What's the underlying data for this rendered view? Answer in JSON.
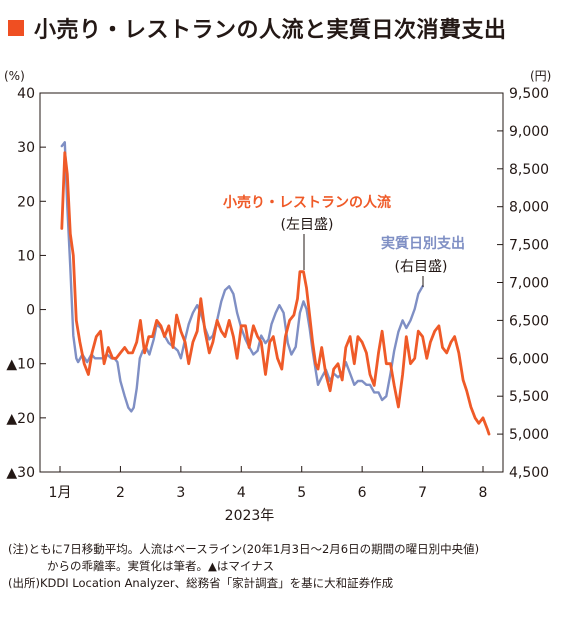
{
  "title": "小売り・レストランの人流と実質日次消費支出",
  "notes": {
    "note1": "(注)ともに7日移動平均。人流はベースライン(20年1月3日〜2月6日の期間の曜日別中央値)",
    "note2": "からの乖離率。実質化は筆者。▲はマイナス",
    "source": "(出所)KDDI Location Analyzer、総務省「家計調査」を基に大和証券作成"
  },
  "colors": {
    "accent": "#ef4f22",
    "people_flow": "#ef5a28",
    "spending": "#7f8fc4",
    "text": "#231815"
  },
  "chart_data": {
    "type": "line",
    "xlabel": "2023年",
    "x_tick_labels": [
      "1月",
      "2",
      "3",
      "4",
      "5",
      "6",
      "7",
      "8"
    ],
    "xlim": [
      1,
      8
    ],
    "left_axis": {
      "unit": "(%)",
      "ylim": [
        -30,
        40
      ],
      "ticks": [
        40,
        30,
        20,
        10,
        0,
        -10,
        -20,
        -30
      ],
      "tick_labels": [
        "40",
        "30",
        "20",
        "10",
        "0",
        "▲10",
        "▲20",
        "▲30"
      ]
    },
    "right_axis": {
      "unit": "(円)",
      "ylim": [
        4500,
        9500
      ],
      "ticks": [
        9500,
        9000,
        8500,
        8000,
        7500,
        7000,
        6500,
        6000,
        5500,
        5000,
        4500
      ],
      "tick_labels": [
        "9,500",
        "9,000",
        "8,500",
        "8,000",
        "7,500",
        "7,000",
        "6,500",
        "6,000",
        "5,500",
        "5,000",
        "4,500"
      ]
    },
    "series": [
      {
        "name": "実質日別支出",
        "sublabel": "(右目盛)",
        "axis": "right",
        "color": "#7f8fc4",
        "x": [
          1.03,
          1.08,
          1.12,
          1.17,
          1.22,
          1.27,
          1.3,
          1.37,
          1.45,
          1.52,
          1.58,
          1.63,
          1.7,
          1.78,
          1.85,
          1.9,
          1.95,
          2.0,
          2.07,
          2.13,
          2.18,
          2.22,
          2.27,
          2.32,
          2.37,
          2.42,
          2.48,
          2.55,
          2.6,
          2.67,
          2.73,
          2.8,
          2.88,
          2.95,
          3.0,
          3.07,
          3.13,
          3.2,
          3.27,
          3.33,
          3.4,
          3.47,
          3.53,
          3.6,
          3.67,
          3.73,
          3.8,
          3.87,
          3.93,
          4.0,
          4.07,
          4.13,
          4.2,
          4.27,
          4.33,
          4.4,
          4.45,
          4.5,
          4.57,
          4.63,
          4.7,
          4.77,
          4.83,
          4.9,
          4.97,
          5.03,
          5.08,
          5.13,
          5.18,
          5.23,
          5.27,
          5.33,
          5.4,
          5.47,
          5.53,
          5.6,
          5.67,
          5.73,
          5.8,
          5.87,
          5.93,
          6.0,
          6.07,
          6.13,
          6.2,
          6.27,
          6.33,
          6.4,
          6.47,
          6.53,
          6.6,
          6.67,
          6.73,
          6.8,
          6.87,
          6.93,
          7.0
        ],
        "values": [
          8800,
          8850,
          8000,
          7200,
          6300,
          6000,
          5950,
          6050,
          5950,
          6050,
          6000,
          6000,
          6000,
          6050,
          6000,
          6000,
          5950,
          5700,
          5500,
          5350,
          5300,
          5350,
          5600,
          6000,
          6100,
          6150,
          6050,
          6250,
          6450,
          6400,
          6300,
          6200,
          6150,
          6100,
          6000,
          6250,
          6450,
          6600,
          6700,
          6600,
          6400,
          6250,
          6300,
          6500,
          6750,
          6900,
          6950,
          6850,
          6600,
          6400,
          6250,
          6150,
          6050,
          6100,
          6300,
          6200,
          6250,
          6450,
          6600,
          6700,
          6600,
          6200,
          6050,
          6150,
          6600,
          6750,
          6650,
          6400,
          6100,
          5850,
          5650,
          5750,
          5850,
          5700,
          5800,
          5750,
          5800,
          5950,
          5800,
          5650,
          5700,
          5700,
          5650,
          5650,
          5550,
          5550,
          5450,
          5500,
          5800,
          6100,
          6350,
          6500,
          6400,
          6500,
          6650,
          6850,
          6950
        ]
      },
      {
        "name": "小売り・レストランの人流",
        "sublabel": "(左目盛)",
        "axis": "left",
        "color": "#ef5a28",
        "x": [
          1.03,
          1.08,
          1.12,
          1.17,
          1.22,
          1.27,
          1.33,
          1.4,
          1.47,
          1.53,
          1.6,
          1.67,
          1.73,
          1.8,
          1.87,
          1.93,
          2.0,
          2.07,
          2.13,
          2.2,
          2.27,
          2.33,
          2.4,
          2.47,
          2.53,
          2.6,
          2.67,
          2.73,
          2.8,
          2.87,
          2.93,
          3.0,
          3.07,
          3.13,
          3.2,
          3.27,
          3.33,
          3.4,
          3.47,
          3.53,
          3.6,
          3.67,
          3.73,
          3.8,
          3.87,
          3.93,
          4.0,
          4.07,
          4.13,
          4.2,
          4.27,
          4.33,
          4.4,
          4.47,
          4.53,
          4.6,
          4.67,
          4.73,
          4.8,
          4.87,
          4.93,
          4.97,
          5.03,
          5.08,
          5.13,
          5.18,
          5.23,
          5.27,
          5.33,
          5.4,
          5.47,
          5.53,
          5.6,
          5.67,
          5.73,
          5.8,
          5.87,
          5.93,
          6.0,
          6.07,
          6.13,
          6.2,
          6.27,
          6.33,
          6.4,
          6.47,
          6.53,
          6.6,
          6.67,
          6.73,
          6.8,
          6.87,
          6.93,
          7.0,
          7.07,
          7.13,
          7.2,
          7.27,
          7.33,
          7.4,
          7.47,
          7.53,
          7.6,
          7.67,
          7.73,
          7.8,
          7.87,
          7.93,
          8.0,
          8.07,
          8.1
        ],
        "values": [
          15,
          29,
          25,
          14,
          10,
          -2,
          -6,
          -10,
          -12,
          -8,
          -5,
          -4,
          -10,
          -7,
          -9,
          -9,
          -8,
          -7,
          -8,
          -8,
          -6,
          -2,
          -8,
          -5,
          -5,
          -2,
          -3,
          -5,
          -3,
          -7,
          -1,
          -4,
          -6,
          -10,
          -6,
          -4,
          2,
          -4,
          -8,
          -6,
          -2,
          -4,
          -5,
          -2,
          -5,
          -9,
          -3,
          -3,
          -7,
          -3,
          -5,
          -6,
          -12,
          -6,
          -5,
          -9,
          -11,
          -5,
          -2,
          -1,
          2,
          7,
          7,
          4,
          -1,
          -6,
          -10,
          -11,
          -7,
          -12,
          -15,
          -11,
          -10,
          -13,
          -7,
          -5,
          -10,
          -5,
          -6,
          -8,
          -12,
          -14,
          -8,
          -4,
          -10,
          -10,
          -14,
          -18,
          -12,
          -5,
          -10,
          -9,
          -4,
          -5,
          -9,
          -6,
          -4,
          -3,
          -7,
          -8,
          -6,
          -5,
          -8,
          -13,
          -15,
          -18,
          -20,
          -21,
          -20,
          -22,
          -23
        ]
      }
    ]
  }
}
